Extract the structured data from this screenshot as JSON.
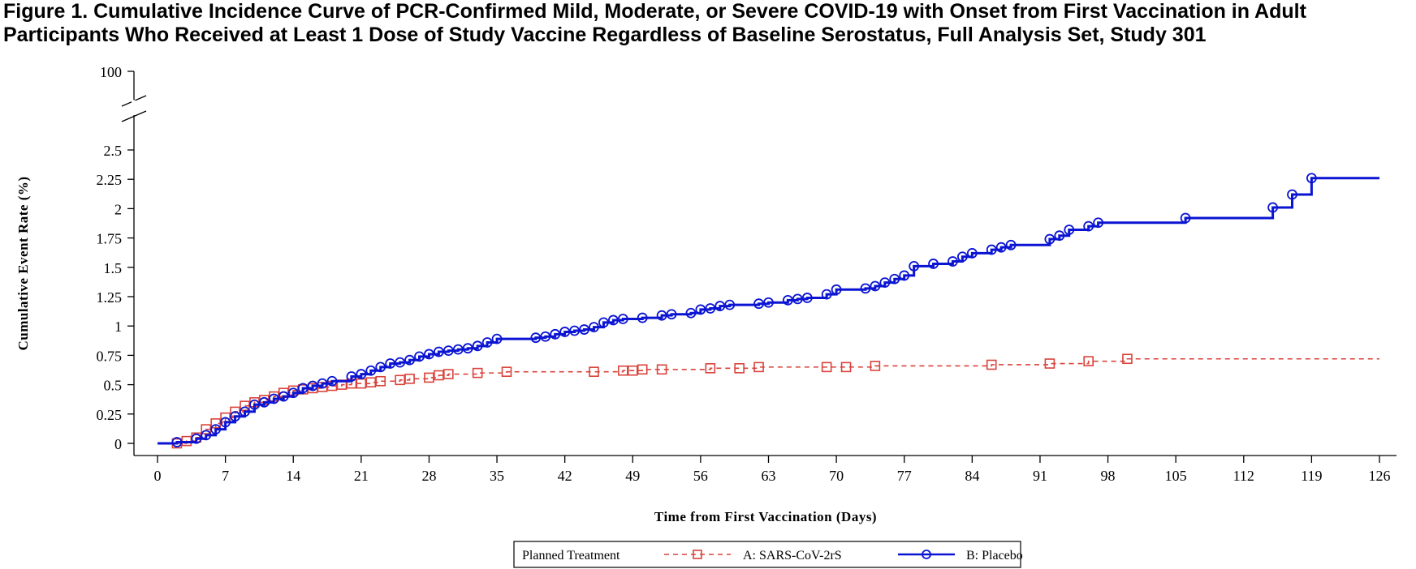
{
  "figure": {
    "title_line1": "Figure 1. Cumulative Incidence Curve of PCR-Confirmed Mild, Moderate, or Severe COVID-19 with Onset from First Vaccination in Adult",
    "title_line2": "Participants Who Received at Least 1 Dose of Study Vaccine Regardless of Baseline Serostatus, Full Analysis Set, Study 301"
  },
  "chart_data": {
    "type": "line",
    "xlabel": "Time from First Vaccination (Days)",
    "ylabel": "Cumulative Event Rate (%)",
    "xlim": [
      0,
      126
    ],
    "ylim": [
      0,
      2.5
    ],
    "y_break_top_tick": "100",
    "x_ticks": [
      "0",
      "7",
      "14",
      "21",
      "28",
      "35",
      "42",
      "49",
      "56",
      "63",
      "70",
      "77",
      "84",
      "91",
      "98",
      "105",
      "112",
      "119",
      "126"
    ],
    "y_ticks": [
      "0",
      "0.25",
      "0.5",
      "0.75",
      "1",
      "1.25",
      "1.5",
      "1.75",
      "2",
      "2.25",
      "2.5"
    ],
    "legend_title": "Planned Treatment",
    "legend_position": "bottom",
    "grid": false,
    "series": [
      {
        "name": "A: SARS-CoV-2rS",
        "color": "#d9433b",
        "line_style": "dashed",
        "marker": "square",
        "points": [
          [
            0,
            0
          ],
          [
            2,
            0
          ],
          [
            3,
            0.02
          ],
          [
            4,
            0.05
          ],
          [
            5,
            0.12
          ],
          [
            6,
            0.17
          ],
          [
            7,
            0.22
          ],
          [
            8,
            0.27
          ],
          [
            9,
            0.32
          ],
          [
            10,
            0.35
          ],
          [
            11,
            0.37
          ],
          [
            12,
            0.4
          ],
          [
            13,
            0.43
          ],
          [
            14,
            0.45
          ],
          [
            15,
            0.46
          ],
          [
            16,
            0.47
          ],
          [
            17,
            0.48
          ],
          [
            18,
            0.49
          ],
          [
            19,
            0.5
          ],
          [
            20,
            0.51
          ],
          [
            21,
            0.51
          ],
          [
            22,
            0.52
          ],
          [
            23,
            0.53
          ],
          [
            25,
            0.54
          ],
          [
            26,
            0.55
          ],
          [
            28,
            0.56
          ],
          [
            29,
            0.58
          ],
          [
            30,
            0.59
          ],
          [
            33,
            0.6
          ],
          [
            36,
            0.61
          ],
          [
            45,
            0.61
          ],
          [
            48,
            0.62
          ],
          [
            49,
            0.62
          ],
          [
            50,
            0.63
          ],
          [
            52,
            0.63
          ],
          [
            57,
            0.64
          ],
          [
            60,
            0.64
          ],
          [
            62,
            0.65
          ],
          [
            69,
            0.65
          ],
          [
            71,
            0.65
          ],
          [
            74,
            0.66
          ],
          [
            86,
            0.67
          ],
          [
            92,
            0.68
          ],
          [
            96,
            0.7
          ],
          [
            100,
            0.72
          ],
          [
            126,
            0.72
          ]
        ]
      },
      {
        "name": "B: Placebo",
        "color": "#0a14d2",
        "line_style": "solid",
        "marker": "circle",
        "points": [
          [
            0,
            0
          ],
          [
            2,
            0.01
          ],
          [
            4,
            0.04
          ],
          [
            5,
            0.07
          ],
          [
            6,
            0.12
          ],
          [
            7,
            0.18
          ],
          [
            8,
            0.23
          ],
          [
            9,
            0.27
          ],
          [
            10,
            0.33
          ],
          [
            11,
            0.35
          ],
          [
            12,
            0.38
          ],
          [
            13,
            0.4
          ],
          [
            14,
            0.43
          ],
          [
            15,
            0.47
          ],
          [
            16,
            0.49
          ],
          [
            17,
            0.51
          ],
          [
            18,
            0.53
          ],
          [
            20,
            0.57
          ],
          [
            21,
            0.59
          ],
          [
            22,
            0.62
          ],
          [
            23,
            0.65
          ],
          [
            24,
            0.68
          ],
          [
            25,
            0.69
          ],
          [
            26,
            0.71
          ],
          [
            27,
            0.74
          ],
          [
            28,
            0.76
          ],
          [
            29,
            0.78
          ],
          [
            30,
            0.79
          ],
          [
            31,
            0.8
          ],
          [
            32,
            0.81
          ],
          [
            33,
            0.83
          ],
          [
            34,
            0.86
          ],
          [
            35,
            0.89
          ],
          [
            39,
            0.9
          ],
          [
            40,
            0.91
          ],
          [
            41,
            0.93
          ],
          [
            42,
            0.95
          ],
          [
            43,
            0.96
          ],
          [
            44,
            0.97
          ],
          [
            45,
            0.99
          ],
          [
            46,
            1.03
          ],
          [
            47,
            1.05
          ],
          [
            48,
            1.06
          ],
          [
            50,
            1.07
          ],
          [
            52,
            1.09
          ],
          [
            53,
            1.1
          ],
          [
            55,
            1.11
          ],
          [
            56,
            1.14
          ],
          [
            57,
            1.15
          ],
          [
            58,
            1.17
          ],
          [
            59,
            1.18
          ],
          [
            62,
            1.19
          ],
          [
            63,
            1.2
          ],
          [
            65,
            1.22
          ],
          [
            66,
            1.23
          ],
          [
            67,
            1.24
          ],
          [
            69,
            1.27
          ],
          [
            70,
            1.31
          ],
          [
            73,
            1.32
          ],
          [
            74,
            1.34
          ],
          [
            75,
            1.37
          ],
          [
            76,
            1.4
          ],
          [
            77,
            1.43
          ],
          [
            78,
            1.51
          ],
          [
            80,
            1.53
          ],
          [
            82,
            1.55
          ],
          [
            83,
            1.59
          ],
          [
            84,
            1.62
          ],
          [
            86,
            1.65
          ],
          [
            87,
            1.67
          ],
          [
            88,
            1.69
          ],
          [
            92,
            1.74
          ],
          [
            93,
            1.77
          ],
          [
            94,
            1.82
          ],
          [
            96,
            1.85
          ],
          [
            97,
            1.88
          ],
          [
            106,
            1.92
          ],
          [
            115,
            2.01
          ],
          [
            117,
            2.12
          ],
          [
            119,
            2.26
          ],
          [
            126,
            2.26
          ]
        ]
      }
    ]
  }
}
